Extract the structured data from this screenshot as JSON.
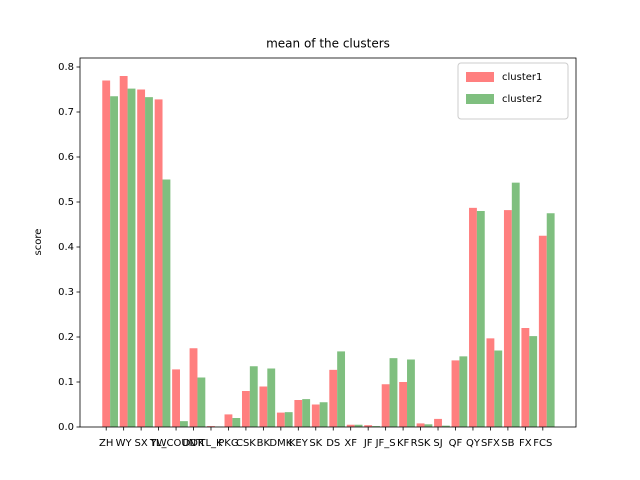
{
  "chart_data": {
    "type": "bar",
    "title": "mean of the clusters",
    "ylabel": "score",
    "categories": [
      "ZH",
      "WY",
      "SX",
      "YW",
      "TL_COUNT",
      "DDK",
      "TL_K",
      "PKG",
      "CSK",
      "BK",
      "DMK",
      "KEY",
      "SK",
      "DS",
      "XF",
      "JF",
      "JF_S",
      "KF",
      "RSK",
      "SJ",
      "QF",
      "QY",
      "SFX",
      "SB",
      "FX",
      "FCS"
    ],
    "series": [
      {
        "name": "cluster1",
        "color": "#ff7f7f",
        "values": [
          0.77,
          0.78,
          0.75,
          0.728,
          0.128,
          0.175,
          0.002,
          0.028,
          0.08,
          0.09,
          0.032,
          0.06,
          0.05,
          0.127,
          0.005,
          0.004,
          0.095,
          0.1,
          0.008,
          0.018,
          0.148,
          0.487,
          0.197,
          0.482,
          0.22,
          0.425
        ]
      },
      {
        "name": "cluster2",
        "color": "#7fbf7f",
        "values": [
          0.735,
          0.752,
          0.733,
          0.55,
          0.013,
          0.11,
          0.001,
          0.02,
          0.135,
          0.13,
          0.033,
          0.062,
          0.055,
          0.168,
          0.005,
          0.002,
          0.153,
          0.15,
          0.006,
          0.003,
          0.157,
          0.48,
          0.17,
          0.543,
          0.202,
          0.475
        ]
      }
    ],
    "ylim": [
      0,
      0.82
    ],
    "yticks": [
      {
        "value": 0,
        "label": "0.0"
      },
      0.1,
      0.2,
      0.3,
      0.4,
      0.5,
      0.6,
      0.7,
      0.8
    ],
    "legend": "upper right"
  }
}
